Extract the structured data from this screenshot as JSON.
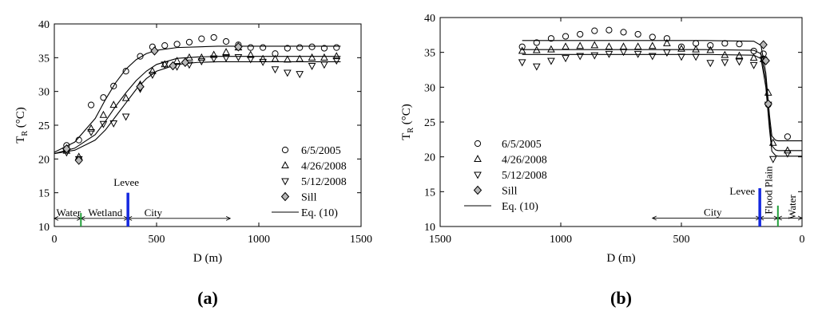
{
  "chart_data": [
    {
      "type": "scatter",
      "panel_label": "(a)",
      "xlabel": "D (m)",
      "ylabel_main": "T",
      "ylabel_sub": "R",
      "ylabel_unit": "(°C)",
      "xlim": [
        0,
        1500
      ],
      "ylim": [
        10,
        40
      ],
      "xticks": [
        0,
        500,
        1000,
        1500
      ],
      "yticks": [
        10,
        15,
        20,
        25,
        30,
        35,
        40
      ],
      "x_reversed": false,
      "grid": false,
      "legend_position": "bottom-right",
      "series": [
        {
          "name": "6/5/2005",
          "marker": "circle",
          "x": [
            60,
            120,
            180,
            240,
            290,
            350,
            420,
            480,
            540,
            600,
            660,
            720,
            780,
            840,
            900,
            960,
            1020,
            1080,
            1140,
            1200,
            1260,
            1320,
            1380
          ],
          "y": [
            22.0,
            22.8,
            28.0,
            29.1,
            30.8,
            33.0,
            35.2,
            36.6,
            36.8,
            37.0,
            37.3,
            37.8,
            38.0,
            37.4,
            36.9,
            36.5,
            36.5,
            35.6,
            36.4,
            36.5,
            36.6,
            36.4,
            36.5
          ]
        },
        {
          "name": "4/26/2008",
          "marker": "triangle-up",
          "x": [
            60,
            120,
            180,
            240,
            290,
            350,
            420,
            480,
            540,
            600,
            660,
            720,
            780,
            840,
            900,
            960,
            1020,
            1080,
            1140,
            1200,
            1260,
            1320,
            1380
          ],
          "y": [
            21.2,
            20.3,
            24.5,
            26.5,
            28.0,
            29.0,
            31.0,
            33.0,
            34.0,
            34.5,
            35.0,
            35.0,
            35.4,
            35.8,
            36.5,
            35.4,
            34.8,
            34.8,
            34.7,
            34.8,
            35.0,
            35.0,
            35.2
          ]
        },
        {
          "name": "5/12/2008",
          "marker": "triangle-down",
          "x": [
            60,
            120,
            180,
            240,
            290,
            350,
            420,
            480,
            540,
            600,
            660,
            720,
            780,
            840,
            900,
            960,
            1020,
            1080,
            1140,
            1200,
            1260,
            1320,
            1380
          ],
          "y": [
            21.0,
            20.0,
            24.0,
            25.2,
            25.3,
            26.3,
            30.4,
            32.5,
            34.0,
            33.7,
            34.0,
            34.5,
            34.9,
            35.0,
            35.1,
            34.8,
            34.4,
            33.3,
            32.8,
            32.6,
            33.8,
            34.0,
            34.6
          ]
        },
        {
          "name": "Sill",
          "marker": "diamond",
          "x": [
            60,
            120,
            420,
            490,
            580,
            640,
            900
          ],
          "y": [
            21.5,
            19.8,
            30.7,
            36.0,
            33.8,
            34.3,
            36.6
          ]
        }
      ],
      "fit_curves": [
        {
          "name": "Eq. (10)",
          "x": [
            0,
            100,
            200,
            250,
            300,
            350,
            400,
            450,
            500,
            600,
            700,
            800,
            1000,
            1200,
            1400
          ],
          "y": [
            21.0,
            22.5,
            26.0,
            28.8,
            31.3,
            33.3,
            34.7,
            35.6,
            36.1,
            36.5,
            36.6,
            36.7,
            36.7,
            36.7,
            36.7
          ]
        },
        {
          "name": "",
          "x": [
            0,
            100,
            200,
            250,
            300,
            350,
            400,
            450,
            500,
            600,
            700,
            800,
            1000,
            1200,
            1400
          ],
          "y": [
            20.8,
            21.6,
            23.6,
            25.6,
            27.8,
            29.8,
            31.6,
            33.0,
            34.0,
            34.9,
            35.1,
            35.2,
            35.2,
            35.2,
            35.2
          ]
        },
        {
          "name": "",
          "x": [
            0,
            100,
            200,
            250,
            300,
            350,
            400,
            450,
            500,
            600,
            700,
            800,
            1000,
            1200,
            1400
          ],
          "y": [
            20.8,
            21.3,
            22.8,
            24.3,
            26.3,
            28.3,
            30.3,
            31.9,
            33.0,
            34.0,
            34.3,
            34.4,
            34.4,
            34.4,
            34.4
          ]
        }
      ],
      "legend_line_label": "Eq. (10)",
      "annotations": {
        "water": "Water",
        "wetland": "Wetland",
        "city": "City",
        "levee": "Levee",
        "levee_x": 360,
        "wetland_start_x": 130,
        "city_end_x": 860,
        "water_start_x": 0,
        "arrow_y": 11.2
      }
    },
    {
      "type": "scatter",
      "panel_label": "(b)",
      "xlabel": "D (m)",
      "ylabel_main": "T",
      "ylabel_sub": "R",
      "ylabel_unit": "(°C)",
      "xlim": [
        1500,
        0
      ],
      "ylim": [
        10,
        40
      ],
      "xticks": [
        1500,
        1000,
        500,
        0
      ],
      "yticks": [
        10,
        15,
        20,
        25,
        30,
        35,
        40
      ],
      "x_reversed": true,
      "grid": false,
      "legend_position": "bottom-left",
      "series": [
        {
          "name": "6/5/2005",
          "marker": "circle",
          "x": [
            1160,
            1100,
            1040,
            980,
            920,
            860,
            800,
            740,
            680,
            620,
            560,
            500,
            440,
            380,
            320,
            260,
            200,
            160,
            140,
            60
          ],
          "y": [
            35.8,
            36.4,
            37.0,
            37.3,
            37.6,
            38.1,
            38.2,
            37.9,
            37.6,
            37.2,
            37.0,
            35.8,
            36.3,
            36.0,
            36.3,
            36.2,
            35.2,
            34.8,
            27.5,
            22.9
          ]
        },
        {
          "name": "4/26/2008",
          "marker": "triangle-up",
          "x": [
            1160,
            1100,
            1040,
            980,
            920,
            860,
            800,
            740,
            680,
            620,
            560,
            500,
            440,
            380,
            320,
            260,
            200,
            160,
            140,
            120,
            60
          ],
          "y": [
            35.2,
            35.3,
            35.4,
            35.8,
            35.9,
            36.0,
            35.8,
            35.8,
            35.8,
            35.9,
            36.3,
            35.5,
            35.4,
            35.3,
            34.6,
            34.5,
            34.2,
            34.0,
            29.2,
            22.0,
            20.9
          ]
        },
        {
          "name": "5/12/2008",
          "marker": "triangle-down",
          "x": [
            1160,
            1100,
            1040,
            980,
            920,
            860,
            800,
            740,
            680,
            620,
            560,
            500,
            440,
            380,
            320,
            260,
            200,
            160,
            140,
            120,
            60
          ],
          "y": [
            33.6,
            33.0,
            33.8,
            34.2,
            34.5,
            34.6,
            34.8,
            35.1,
            34.8,
            34.5,
            35.0,
            34.4,
            34.4,
            33.5,
            33.6,
            33.7,
            33.2,
            34.0,
            27.5,
            19.7,
            20.5
          ]
        },
        {
          "name": "Sill",
          "marker": "diamond",
          "x": [
            160,
            150,
            140
          ],
          "y": [
            36.1,
            33.8,
            27.6
          ]
        }
      ],
      "fit_curves": [
        {
          "name": "Eq. (10)",
          "x": [
            1160,
            400,
            200,
            170,
            150,
            135,
            125,
            110,
            100,
            50,
            0
          ],
          "y": [
            36.7,
            36.7,
            36.6,
            36.0,
            32.0,
            26.0,
            23.0,
            22.4,
            22.3,
            22.3,
            22.3
          ]
        },
        {
          "name": "",
          "x": [
            1160,
            400,
            200,
            170,
            150,
            135,
            125,
            110,
            100,
            50,
            0
          ],
          "y": [
            35.4,
            35.4,
            35.3,
            34.8,
            31.0,
            25.0,
            21.6,
            21.0,
            20.9,
            20.9,
            20.9
          ]
        },
        {
          "name": "",
          "x": [
            1160,
            400,
            200,
            170,
            150,
            135,
            125,
            110,
            100,
            50,
            0
          ],
          "y": [
            34.7,
            34.7,
            34.6,
            34.1,
            30.0,
            24.0,
            20.8,
            20.2,
            20.1,
            20.1,
            20.1
          ]
        }
      ],
      "legend_line_label": "Eq. (10)",
      "annotations": {
        "city": "City",
        "levee": "Levee",
        "flood_plain": "Flood Plain",
        "water": "Water",
        "levee_x": 175,
        "flood_end_x": 100,
        "city_start_x": 620,
        "arrow_y": 11.2
      }
    }
  ]
}
